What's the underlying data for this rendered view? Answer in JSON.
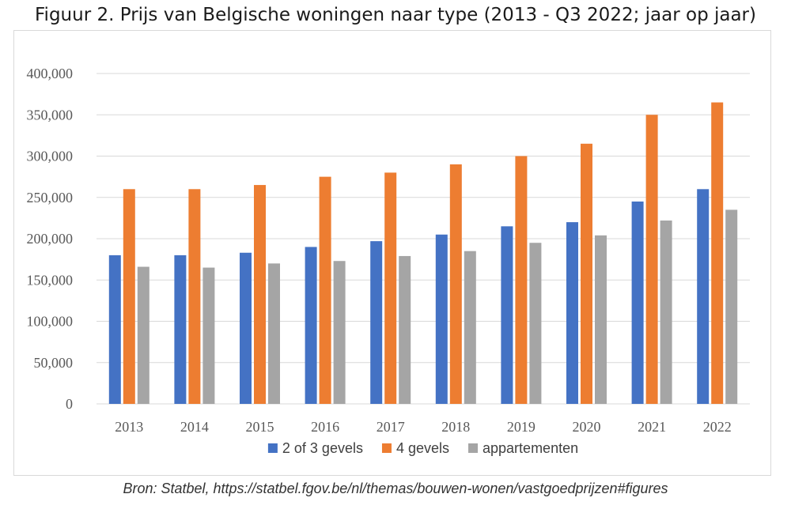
{
  "title": "Figuur 2. Prijs van Belgische woningen naar type (2013 - Q3 2022; jaar op jaar)",
  "source": "Bron: Statbel, https://statbel.fgov.be/nl/themas/bouwen-wonen/vastgoedprijzen#figures",
  "chart_data": {
    "type": "bar",
    "title": "",
    "xlabel": "",
    "ylabel": "",
    "categories": [
      "2013",
      "2014",
      "2015",
      "2016",
      "2017",
      "2018",
      "2019",
      "2020",
      "2021",
      "2022"
    ],
    "series": [
      {
        "name": "2 of 3 gevels",
        "color": "#4472c4",
        "values": [
          180000,
          180000,
          183000,
          190000,
          197000,
          205000,
          215000,
          220000,
          245000,
          260000
        ]
      },
      {
        "name": "4 gevels",
        "color": "#ed7d31",
        "values": [
          260000,
          260000,
          265000,
          275000,
          280000,
          290000,
          300000,
          315000,
          350000,
          365000
        ]
      },
      {
        "name": "appartementen",
        "color": "#a5a5a5",
        "values": [
          166000,
          165000,
          170000,
          173000,
          179000,
          185000,
          195000,
          204000,
          222000,
          235000
        ]
      }
    ],
    "ylim": [
      0,
      400000
    ],
    "yticks": [
      0,
      50000,
      100000,
      150000,
      200000,
      250000,
      300000,
      350000,
      400000
    ],
    "ytick_labels": [
      "0",
      "50,000",
      "100,000",
      "150,000",
      "200,000",
      "250,000",
      "300,000",
      "350,000",
      "400,000"
    ],
    "grid": true,
    "legend_position": "bottom"
  }
}
